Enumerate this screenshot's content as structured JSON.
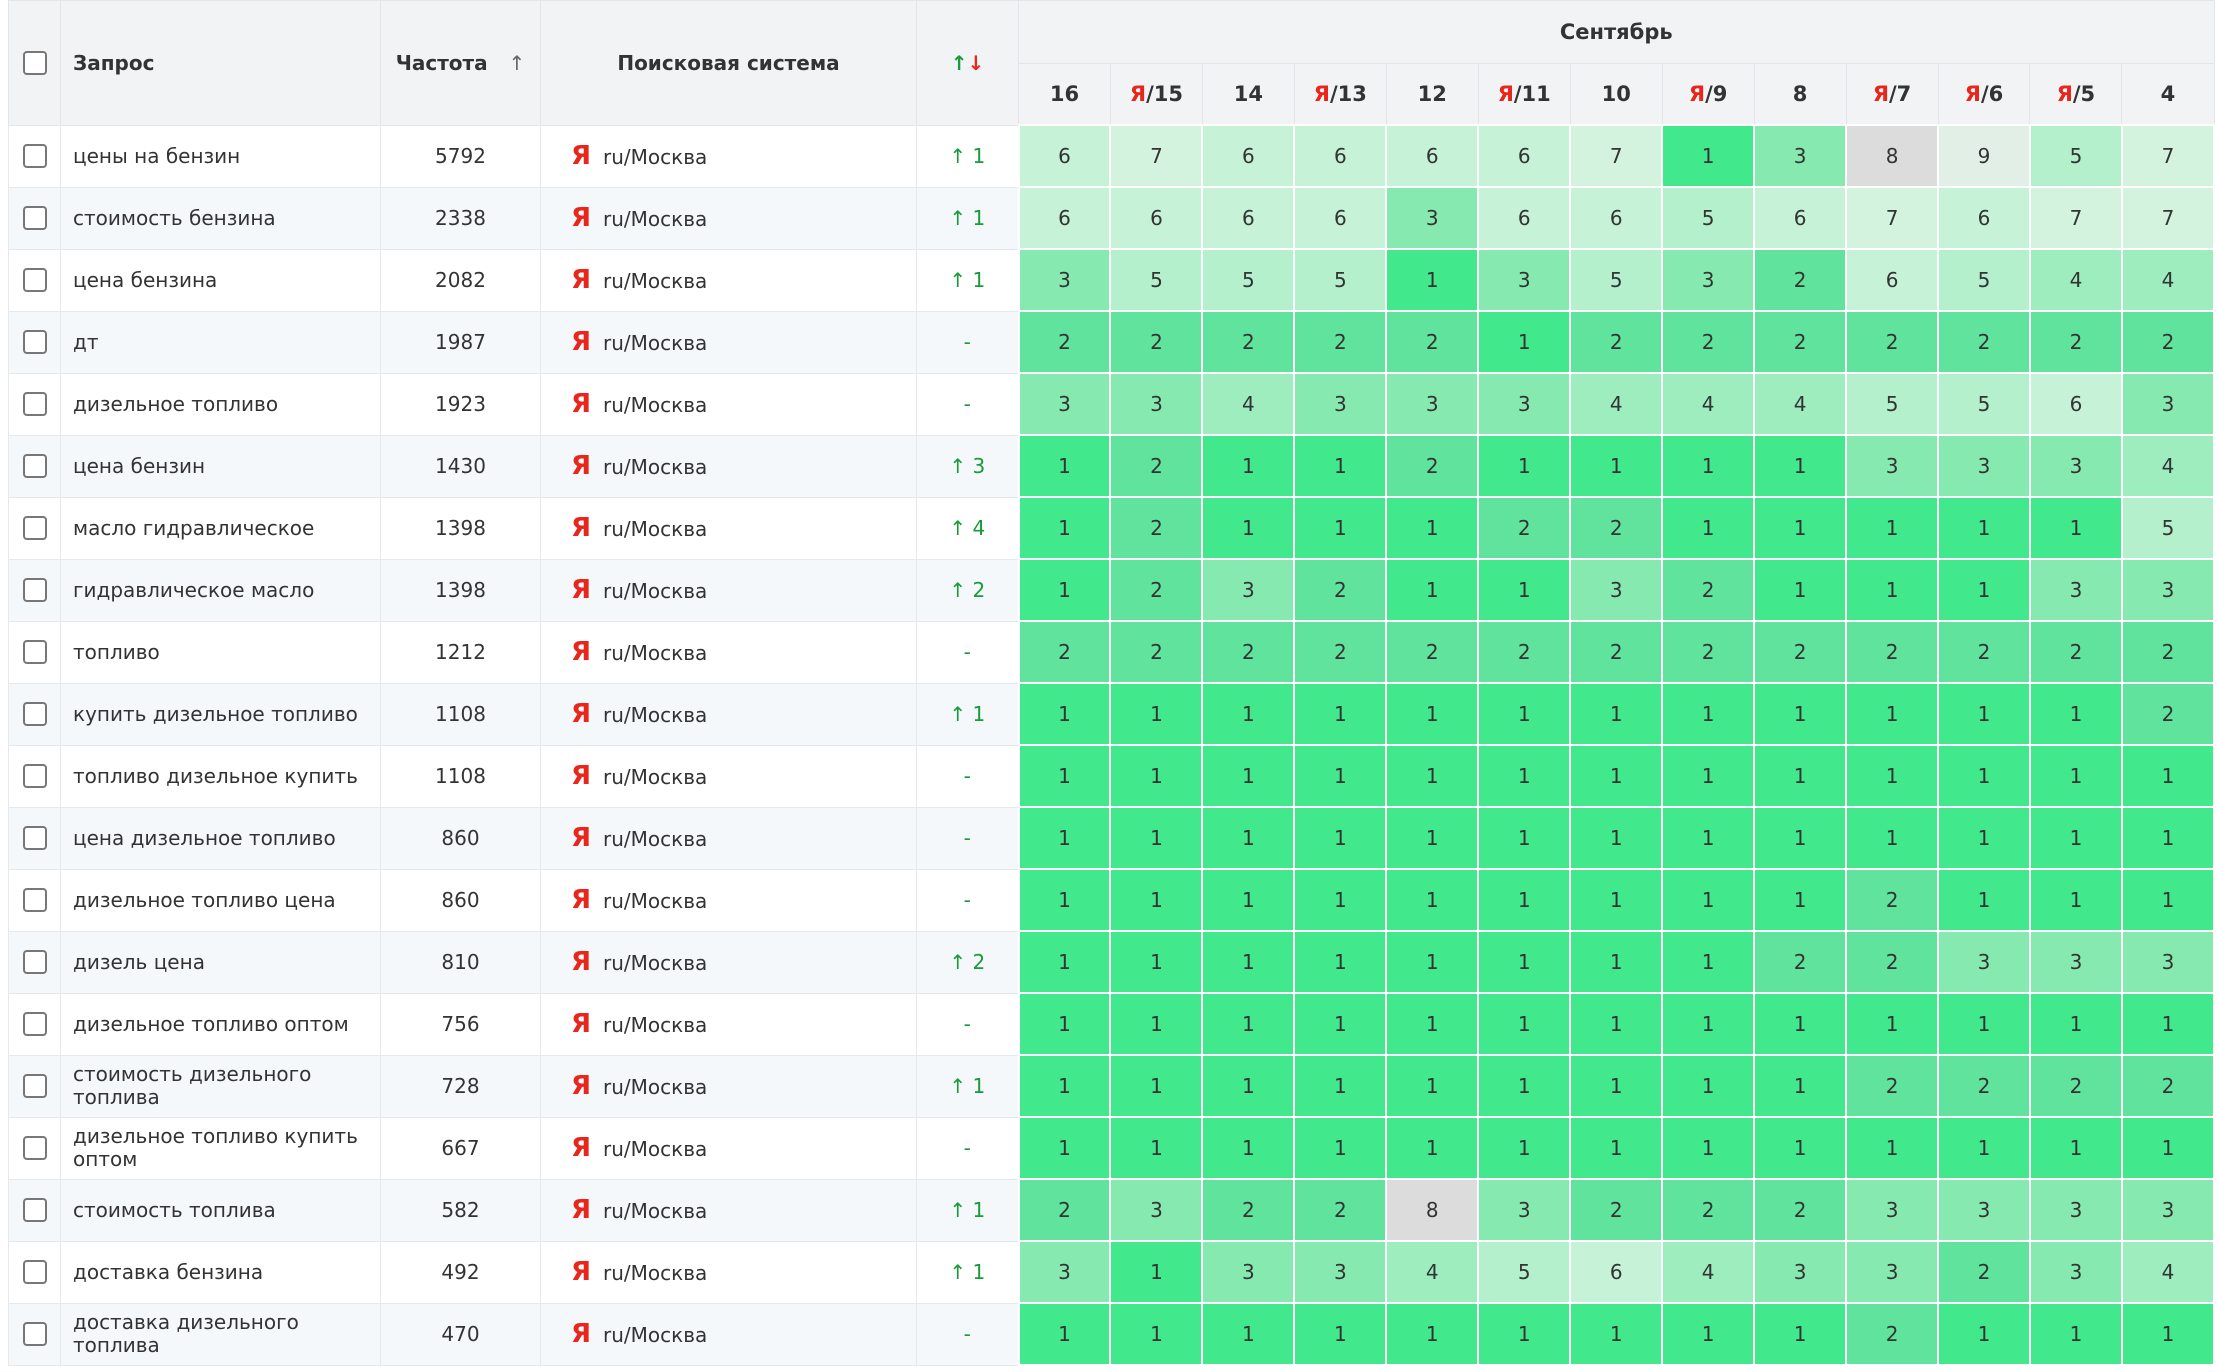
{
  "header": {
    "query": "Запрос",
    "frequency": "Частота",
    "frequency_sort": "↑",
    "engine": "Поисковая система",
    "change_up": "↑",
    "change_down": "↓",
    "month": "Сентябрь",
    "days": [
      {
        "day": "16"
      },
      {
        "prefix": "Я",
        "day": "/15"
      },
      {
        "day": "14"
      },
      {
        "prefix": "Я",
        "day": "/13"
      },
      {
        "day": "12"
      },
      {
        "prefix": "Я",
        "day": "/11"
      },
      {
        "day": "10"
      },
      {
        "prefix": "Я",
        "day": "/9"
      },
      {
        "day": "8"
      },
      {
        "prefix": "Я",
        "day": "/7"
      },
      {
        "prefix": "Я",
        "day": "/6"
      },
      {
        "prefix": "Я",
        "day": "/5"
      },
      {
        "day": "4"
      }
    ]
  },
  "rows": [
    {
      "query": "цены на бензин",
      "frequency": 5792,
      "engine": "Я",
      "region": "ru/Москва",
      "change": "↑ 1",
      "positions": [
        6,
        7,
        6,
        6,
        6,
        6,
        7,
        1,
        3,
        8,
        9,
        5,
        7
      ]
    },
    {
      "query": "стоимость бензина",
      "frequency": 2338,
      "engine": "Я",
      "region": "ru/Москва",
      "change": "↑ 1",
      "positions": [
        6,
        6,
        6,
        6,
        3,
        6,
        6,
        5,
        6,
        7,
        6,
        7,
        7
      ]
    },
    {
      "query": "цена бензина",
      "frequency": 2082,
      "engine": "Я",
      "region": "ru/Москва",
      "change": "↑ 1",
      "positions": [
        3,
        5,
        5,
        5,
        1,
        3,
        5,
        3,
        2,
        6,
        5,
        4,
        4
      ]
    },
    {
      "query": "дт",
      "frequency": 1987,
      "engine": "Я",
      "region": "ru/Москва",
      "change": "-",
      "positions": [
        2,
        2,
        2,
        2,
        2,
        1,
        2,
        2,
        2,
        2,
        2,
        2,
        2
      ]
    },
    {
      "query": "дизельное топливо",
      "frequency": 1923,
      "engine": "Я",
      "region": "ru/Москва",
      "change": "-",
      "positions": [
        3,
        3,
        4,
        3,
        3,
        3,
        4,
        4,
        4,
        5,
        5,
        6,
        3
      ]
    },
    {
      "query": "цена бензин",
      "frequency": 1430,
      "engine": "Я",
      "region": "ru/Москва",
      "change": "↑ 3",
      "positions": [
        1,
        2,
        1,
        1,
        2,
        1,
        1,
        1,
        1,
        3,
        3,
        3,
        4
      ]
    },
    {
      "query": "масло гидравлическое",
      "frequency": 1398,
      "engine": "Я",
      "region": "ru/Москва",
      "change": "↑ 4",
      "positions": [
        1,
        2,
        1,
        1,
        1,
        2,
        2,
        1,
        1,
        1,
        1,
        1,
        5
      ]
    },
    {
      "query": "гидравлическое масло",
      "frequency": 1398,
      "engine": "Я",
      "region": "ru/Москва",
      "change": "↑ 2",
      "positions": [
        1,
        2,
        3,
        2,
        1,
        1,
        3,
        2,
        1,
        1,
        1,
        3,
        3
      ]
    },
    {
      "query": "топливо",
      "frequency": 1212,
      "engine": "Я",
      "region": "ru/Москва",
      "change": "-",
      "positions": [
        2,
        2,
        2,
        2,
        2,
        2,
        2,
        2,
        2,
        2,
        2,
        2,
        2
      ]
    },
    {
      "query": "купить дизельное топливо",
      "frequency": 1108,
      "engine": "Я",
      "region": "ru/Москва",
      "change": "↑ 1",
      "positions": [
        1,
        1,
        1,
        1,
        1,
        1,
        1,
        1,
        1,
        1,
        1,
        1,
        2
      ]
    },
    {
      "query": "топливо дизельное купить",
      "frequency": 1108,
      "engine": "Я",
      "region": "ru/Москва",
      "change": "-",
      "positions": [
        1,
        1,
        1,
        1,
        1,
        1,
        1,
        1,
        1,
        1,
        1,
        1,
        1
      ]
    },
    {
      "query": "цена дизельное топливо",
      "frequency": 860,
      "engine": "Я",
      "region": "ru/Москва",
      "change": "-",
      "positions": [
        1,
        1,
        1,
        1,
        1,
        1,
        1,
        1,
        1,
        1,
        1,
        1,
        1
      ]
    },
    {
      "query": "дизельное топливо цена",
      "frequency": 860,
      "engine": "Я",
      "region": "ru/Москва",
      "change": "-",
      "positions": [
        1,
        1,
        1,
        1,
        1,
        1,
        1,
        1,
        1,
        2,
        1,
        1,
        1
      ]
    },
    {
      "query": "дизель цена",
      "frequency": 810,
      "engine": "Я",
      "region": "ru/Москва",
      "change": "↑ 2",
      "positions": [
        1,
        1,
        1,
        1,
        1,
        1,
        1,
        1,
        2,
        2,
        3,
        3,
        3
      ]
    },
    {
      "query": "дизельное топливо оптом",
      "frequency": 756,
      "engine": "Я",
      "region": "ru/Москва",
      "change": "-",
      "positions": [
        1,
        1,
        1,
        1,
        1,
        1,
        1,
        1,
        1,
        1,
        1,
        1,
        1
      ]
    },
    {
      "query": "стоимость дизельного топлива",
      "frequency": 728,
      "engine": "Я",
      "region": "ru/Москва",
      "change": "↑ 1",
      "positions": [
        1,
        1,
        1,
        1,
        1,
        1,
        1,
        1,
        1,
        2,
        2,
        2,
        2
      ]
    },
    {
      "query": "дизельное топливо купить оптом",
      "frequency": 667,
      "engine": "Я",
      "region": "ru/Москва",
      "change": "-",
      "positions": [
        1,
        1,
        1,
        1,
        1,
        1,
        1,
        1,
        1,
        1,
        1,
        1,
        1
      ]
    },
    {
      "query": "стоимость топлива",
      "frequency": 582,
      "engine": "Я",
      "region": "ru/Москва",
      "change": "↑ 1",
      "positions": [
        2,
        3,
        2,
        2,
        8,
        3,
        2,
        2,
        2,
        3,
        3,
        3,
        3
      ]
    },
    {
      "query": "доставка бензина",
      "frequency": 492,
      "engine": "Я",
      "region": "ru/Москва",
      "change": "↑ 1",
      "positions": [
        3,
        1,
        3,
        3,
        4,
        5,
        6,
        4,
        3,
        3,
        2,
        3,
        4
      ]
    },
    {
      "query": "доставка дизельного топлива",
      "frequency": 470,
      "engine": "Я",
      "region": "ru/Москва",
      "change": "-",
      "positions": [
        1,
        1,
        1,
        1,
        1,
        1,
        1,
        1,
        1,
        2,
        1,
        1,
        1
      ]
    }
  ]
}
